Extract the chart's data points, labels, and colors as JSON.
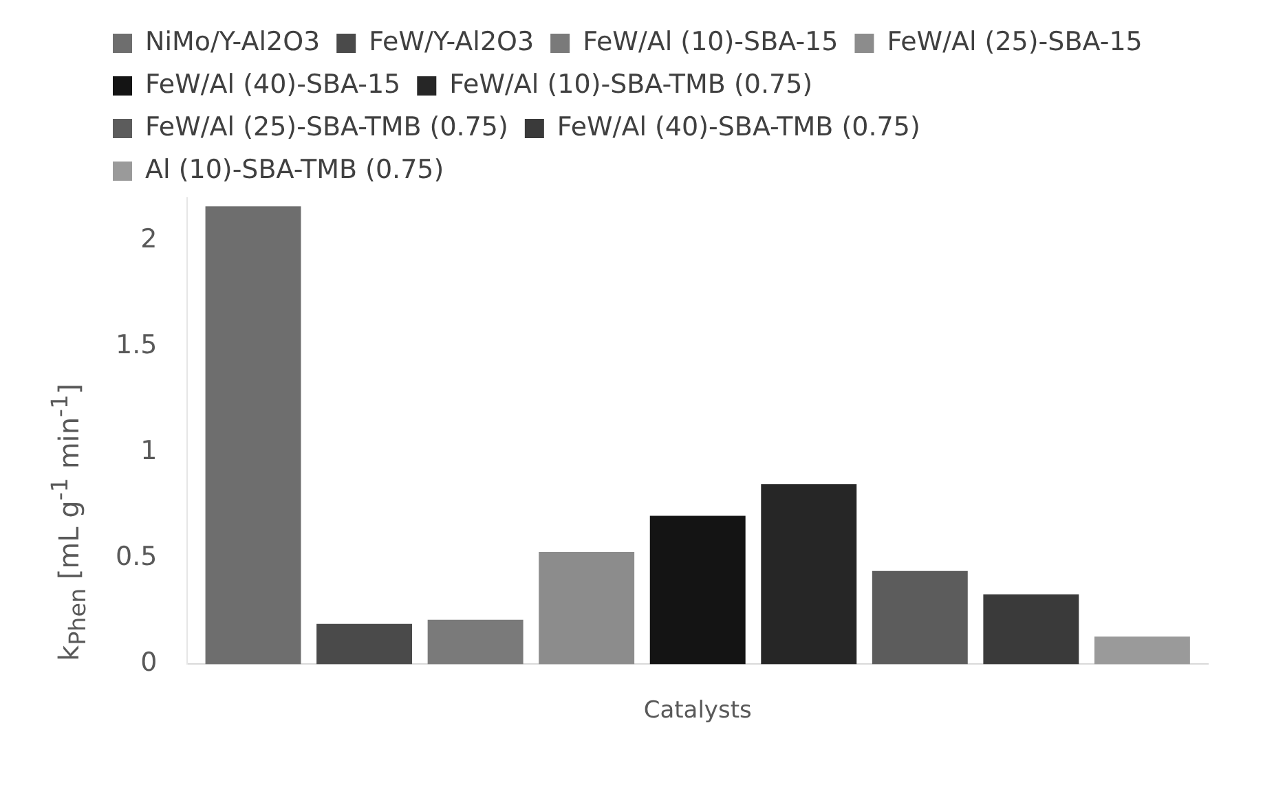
{
  "chart_data": {
    "type": "bar",
    "ylabel": "k$_{Phen}$ [mL g$^{-1}$ min$^{-1}$]",
    "xlabel": "Catalysts",
    "categories": [
      null
    ],
    "series": [
      {
        "name": "NiMo/Y-Al2O3",
        "color": "#6e6e6e",
        "values": [
          2.16
        ]
      },
      {
        "name": "FeW/Y-Al2O3",
        "color": "#4a4a4a",
        "values": [
          0.19
        ]
      },
      {
        "name": "FeW/Al (10)-SBA-15",
        "color": "#7a7a7a",
        "values": [
          0.21
        ]
      },
      {
        "name": "FeW/Al (25)-SBA-15",
        "color": "#8c8c8c",
        "values": [
          0.53
        ]
      },
      {
        "name": "FeW/Al (40)-SBA-15",
        "color": "#141414",
        "values": [
          0.7
        ]
      },
      {
        "name": "FeW/Al (10)-SBA-TMB (0.75)",
        "color": "#262626",
        "values": [
          0.85
        ]
      },
      {
        "name": "FeW/Al (25)-SBA-TMB (0.75)",
        "color": "#5c5c5c",
        "values": [
          0.44
        ]
      },
      {
        "name": "FeW/Al (40)-SBA-TMB (0.75)",
        "color": "#3a3a3a",
        "values": [
          0.33
        ]
      },
      {
        "name": "Al (10)-SBA-TMB (0.75)",
        "color": "#9a9a9a",
        "values": [
          0.13
        ]
      }
    ],
    "ylim": [
      0,
      2.2
    ],
    "yticks": [
      0,
      0.5,
      1,
      1.5,
      2
    ],
    "grid": false,
    "legend": "top"
  }
}
